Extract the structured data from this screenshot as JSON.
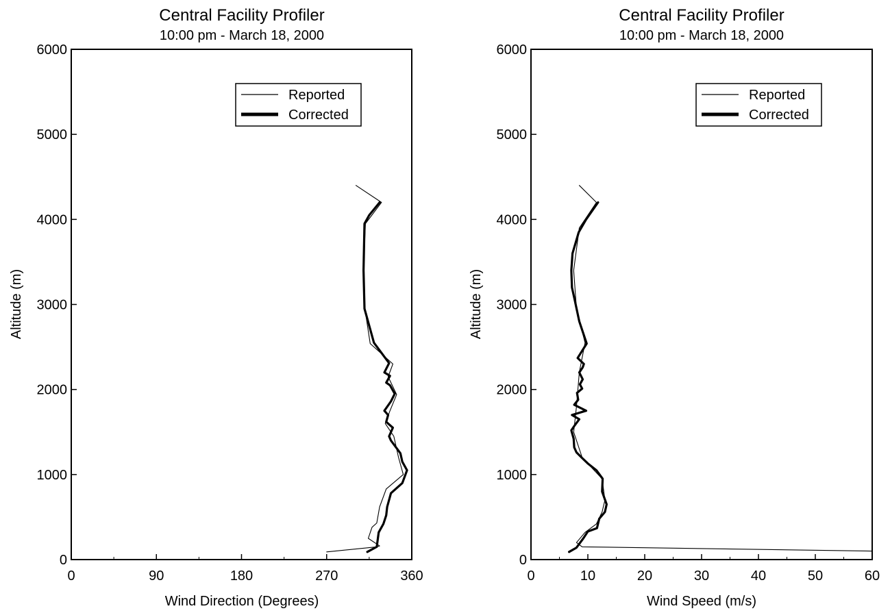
{
  "chart_data": [
    {
      "type": "line",
      "title": "Central Facility Profiler",
      "subtitle": "10:00 pm - March 18, 2000",
      "xlabel": "Wind Direction (Degrees)",
      "ylabel": "Altitude (m)",
      "xlim": [
        0,
        360
      ],
      "ylim": [
        0,
        6000
      ],
      "xticks": [
        "0",
        "90",
        "180",
        "270",
        "360"
      ],
      "yticks": [
        "0",
        "1000",
        "2000",
        "3000",
        "4000",
        "5000",
        "6000"
      ],
      "grid": false,
      "legend_position": "top-right",
      "series": [
        {
          "name": "Reported",
          "style": "thin",
          "points": [
            [
              270,
              90
            ],
            [
              323,
              150
            ],
            [
              326,
              160
            ],
            [
              314,
              250
            ],
            [
              318,
              380
            ],
            [
              323,
              430
            ],
            [
              326,
              620
            ],
            [
              333,
              830
            ],
            [
              351,
              1000
            ],
            [
              346,
              1200
            ],
            [
              341,
              1450
            ],
            [
              332,
              1600
            ],
            [
              337,
              1750
            ],
            [
              344,
              1940
            ],
            [
              335,
              2150
            ],
            [
              340,
              2300
            ],
            [
              316,
              2540
            ],
            [
              310,
              2980
            ],
            [
              309,
              3430
            ],
            [
              311,
              3950
            ],
            [
              328,
              4200
            ],
            [
              301,
              4400
            ]
          ]
        },
        {
          "name": "Corrected",
          "style": "thick",
          "points": [
            [
              313,
              90
            ],
            [
              323,
              150
            ],
            [
              325,
              320
            ],
            [
              330,
              420
            ],
            [
              333,
              520
            ],
            [
              334,
              620
            ],
            [
              338,
              780
            ],
            [
              350,
              900
            ],
            [
              355,
              1050
            ],
            [
              350,
              1150
            ],
            [
              348,
              1250
            ],
            [
              338,
              1400
            ],
            [
              336,
              1450
            ],
            [
              340,
              1550
            ],
            [
              333,
              1620
            ],
            [
              335,
              1700
            ],
            [
              331,
              1750
            ],
            [
              338,
              1860
            ],
            [
              342,
              1950
            ],
            [
              337,
              2050
            ],
            [
              333,
              2080
            ],
            [
              337,
              2160
            ],
            [
              331,
              2200
            ],
            [
              336,
              2310
            ],
            [
              320,
              2550
            ],
            [
              310,
              2950
            ],
            [
              309,
              3400
            ],
            [
              310,
              3950
            ],
            [
              315,
              4050
            ],
            [
              326,
              4200
            ]
          ]
        }
      ]
    },
    {
      "type": "line",
      "title": "Central Facility Profiler",
      "subtitle": "10:00 pm - March 18, 2000",
      "xlabel": "Wind Speed (m/s)",
      "ylabel": "Altitude (m)",
      "xlim": [
        0,
        60
      ],
      "ylim": [
        0,
        6000
      ],
      "xticks": [
        "0",
        "10",
        "20",
        "30",
        "40",
        "50",
        "60"
      ],
      "yticks": [
        "0",
        "1000",
        "2000",
        "3000",
        "4000",
        "5000",
        "6000"
      ],
      "grid": false,
      "legend_position": "top-right",
      "series": [
        {
          "name": "Reported",
          "style": "thin",
          "points": [
            [
              60,
              100
            ],
            [
              30,
              130
            ],
            [
              9,
              150
            ],
            [
              8,
              200
            ],
            [
              9.5,
              320
            ],
            [
              11.5,
              420
            ],
            [
              12.5,
              560
            ],
            [
              13,
              700
            ],
            [
              12.5,
              950
            ],
            [
              9,
              1200
            ],
            [
              7.5,
              1500
            ],
            [
              8,
              1800
            ],
            [
              8.5,
              2200
            ],
            [
              9.5,
              2550
            ],
            [
              8,
              2950
            ],
            [
              7.5,
              3400
            ],
            [
              8.5,
              3900
            ],
            [
              11.5,
              4200
            ],
            [
              8.5,
              4400
            ]
          ]
        },
        {
          "name": "Corrected",
          "style": "thick",
          "points": [
            [
              6.7,
              90
            ],
            [
              8,
              140
            ],
            [
              9.2,
              250
            ],
            [
              10,
              330
            ],
            [
              11.6,
              370
            ],
            [
              12,
              480
            ],
            [
              13,
              560
            ],
            [
              13.3,
              650
            ],
            [
              12.5,
              800
            ],
            [
              12.6,
              950
            ],
            [
              11.5,
              1050
            ],
            [
              10,
              1130
            ],
            [
              8.9,
              1200
            ],
            [
              8,
              1260
            ],
            [
              7.6,
              1320
            ],
            [
              7.5,
              1420
            ],
            [
              7.1,
              1520
            ],
            [
              7.6,
              1570
            ],
            [
              8.5,
              1650
            ],
            [
              7.2,
              1700
            ],
            [
              9.7,
              1750
            ],
            [
              7.6,
              1820
            ],
            [
              8.3,
              1880
            ],
            [
              8.1,
              1960
            ],
            [
              9,
              2010
            ],
            [
              8.6,
              2060
            ],
            [
              9.1,
              2120
            ],
            [
              8.5,
              2200
            ],
            [
              9.1,
              2260
            ],
            [
              9.3,
              2300
            ],
            [
              8.2,
              2370
            ],
            [
              9.8,
              2540
            ],
            [
              8.5,
              2800
            ],
            [
              7.7,
              3050
            ],
            [
              7.2,
              3200
            ],
            [
              7.1,
              3400
            ],
            [
              7.3,
              3600
            ],
            [
              8.4,
              3850
            ],
            [
              9.7,
              4000
            ],
            [
              11.8,
              4200
            ]
          ]
        }
      ]
    }
  ]
}
